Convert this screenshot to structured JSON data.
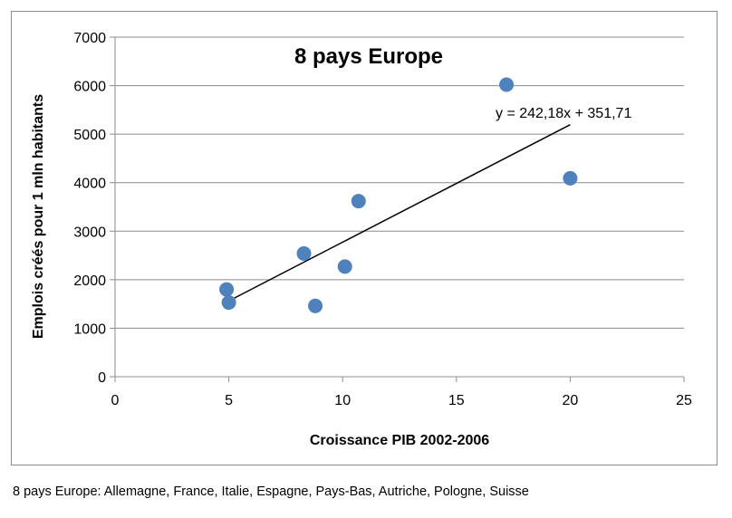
{
  "chart_data": {
    "type": "scatter",
    "title": "8 pays Europe",
    "xlabel": "Croissance  PIB 2002-2006",
    "ylabel": "Emplois  créés pour 1 mln habitants",
    "xlim": [
      0,
      25
    ],
    "ylim": [
      0,
      7000
    ],
    "x_ticks": [
      "0",
      "5",
      "10",
      "15",
      "20",
      "25"
    ],
    "y_ticks": [
      "0",
      "1000",
      "2000",
      "3000",
      "4000",
      "5000",
      "6000",
      "7000"
    ],
    "grid": "horizontal",
    "legend": "none",
    "points": [
      {
        "x": 4.9,
        "y": 1800
      },
      {
        "x": 5.0,
        "y": 1530
      },
      {
        "x": 8.3,
        "y": 2540
      },
      {
        "x": 8.8,
        "y": 1460
      },
      {
        "x": 10.1,
        "y": 2270
      },
      {
        "x": 10.7,
        "y": 3620
      },
      {
        "x": 17.2,
        "y": 6020
      },
      {
        "x": 20.0,
        "y": 4090
      }
    ],
    "trendline": {
      "label": "y = 242,18x + 351,71",
      "slope": 242.18,
      "intercept": 351.71,
      "x_range": [
        5.0,
        20.0
      ]
    },
    "colors": {
      "marker": "#4f81bd",
      "trendline": "#000000",
      "grid": "#8c8c8c"
    }
  },
  "caption": "8 pays Europe: Allemagne, France, Italie, Espagne, Pays-Bas, Autriche, Pologne, Suisse"
}
